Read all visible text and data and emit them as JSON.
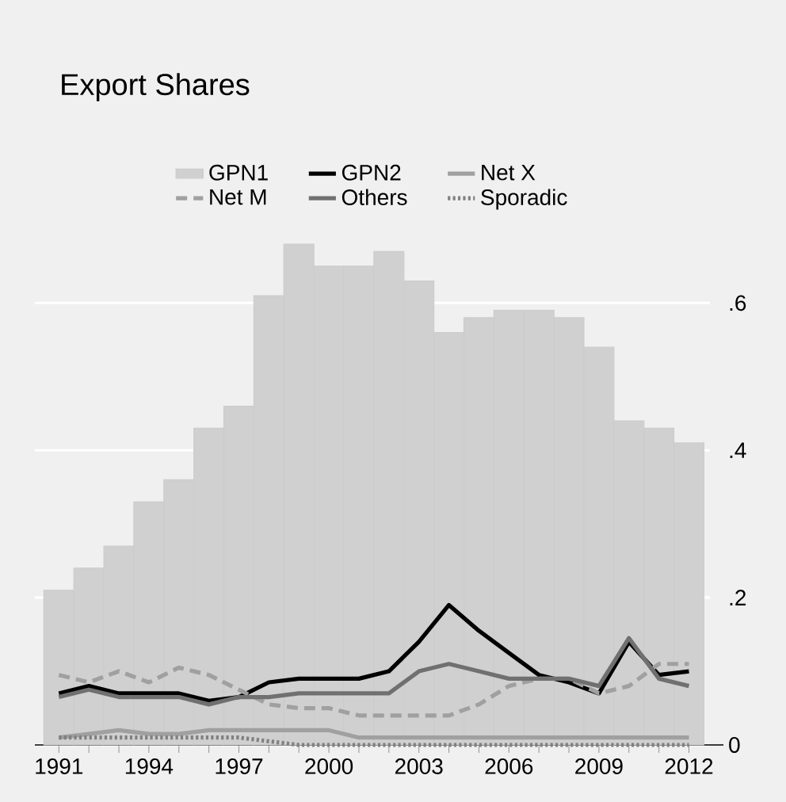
{
  "chart_data": {
    "type": "line",
    "title": "Export Shares",
    "x": [
      1991,
      1992,
      1993,
      1994,
      1995,
      1996,
      1997,
      1998,
      1999,
      2000,
      2001,
      2002,
      2003,
      2004,
      2005,
      2006,
      2007,
      2008,
      2009,
      2010,
      2011,
      2012
    ],
    "series": [
      {
        "name": "GPN1",
        "type": "bar",
        "color": "#d0d0d0",
        "values": [
          0.21,
          0.24,
          0.27,
          0.33,
          0.36,
          0.43,
          0.46,
          0.61,
          0.68,
          0.65,
          0.65,
          0.67,
          0.63,
          0.56,
          0.58,
          0.59,
          0.59,
          0.58,
          0.54,
          0.44,
          0.43,
          0.41
        ]
      },
      {
        "name": "GPN2",
        "color": "#000000",
        "line_style": "solid",
        "values": [
          0.07,
          0.08,
          0.07,
          0.07,
          0.07,
          0.06,
          0.065,
          0.085,
          0.09,
          0.09,
          0.09,
          0.1,
          0.14,
          0.19,
          0.155,
          0.125,
          0.095,
          0.085,
          0.07,
          0.14,
          0.095,
          0.1
        ]
      },
      {
        "name": "Net X",
        "color": "#a0a0a0",
        "line_style": "solid",
        "values": [
          0.01,
          0.015,
          0.02,
          0.015,
          0.015,
          0.02,
          0.02,
          0.02,
          0.02,
          0.02,
          0.01,
          0.01,
          0.01,
          0.01,
          0.01,
          0.01,
          0.01,
          0.01,
          0.01,
          0.01,
          0.01,
          0.01
        ]
      },
      {
        "name": "Net M",
        "color": "#a0a0a0",
        "line_style": "dashed",
        "values": [
          0.095,
          0.085,
          0.1,
          0.085,
          0.105,
          0.095,
          0.075,
          0.055,
          0.05,
          0.05,
          0.04,
          0.04,
          0.04,
          0.04,
          0.055,
          0.08,
          0.09,
          0.09,
          0.07,
          0.08,
          0.11,
          0.11
        ]
      },
      {
        "name": "Others",
        "color": "#707070",
        "line_style": "solid",
        "values": [
          0.065,
          0.075,
          0.065,
          0.065,
          0.065,
          0.055,
          0.065,
          0.065,
          0.07,
          0.07,
          0.07,
          0.07,
          0.1,
          0.11,
          0.1,
          0.09,
          0.09,
          0.09,
          0.08,
          0.145,
          0.09,
          0.08
        ]
      },
      {
        "name": "Sporadic",
        "color": "#808080",
        "line_style": "dotted",
        "values": [
          0.01,
          0.01,
          0.01,
          0.01,
          0.01,
          0.01,
          0.01,
          0.005,
          0,
          0,
          0,
          0,
          0,
          0,
          0,
          0,
          0,
          0,
          0,
          0,
          0,
          0
        ]
      }
    ],
    "xlim": [
      1990.2,
      2012.7
    ],
    "ylim": [
      0,
      0.68
    ],
    "xticks": [
      1991,
      {
        "value": 1992,
        "label": null
      },
      {
        "value": 1993,
        "label": null
      },
      1994,
      {
        "value": 1995,
        "label": null
      },
      {
        "value": 1996,
        "label": null
      },
      1997,
      {
        "value": 1998,
        "label": null
      },
      {
        "value": 1999,
        "label": null
      },
      2000,
      {
        "value": 2001,
        "label": null
      },
      {
        "value": 2002,
        "label": null
      },
      2003,
      {
        "value": 2004,
        "label": null
      },
      {
        "value": 2005,
        "label": null
      },
      2006,
      {
        "value": 2007,
        "label": null
      },
      {
        "value": 2008,
        "label": null
      },
      2009,
      {
        "value": 2010,
        "label": null
      },
      {
        "value": 2011,
        "label": null
      },
      2012
    ],
    "yticks": [
      0,
      {
        "value": 0.2,
        "label": ".2"
      },
      {
        "value": 0.4,
        "label": ".4"
      },
      {
        "value": 0.6,
        "label": ".6"
      }
    ],
    "grid": "y",
    "legend": "top",
    "marker": "none"
  }
}
